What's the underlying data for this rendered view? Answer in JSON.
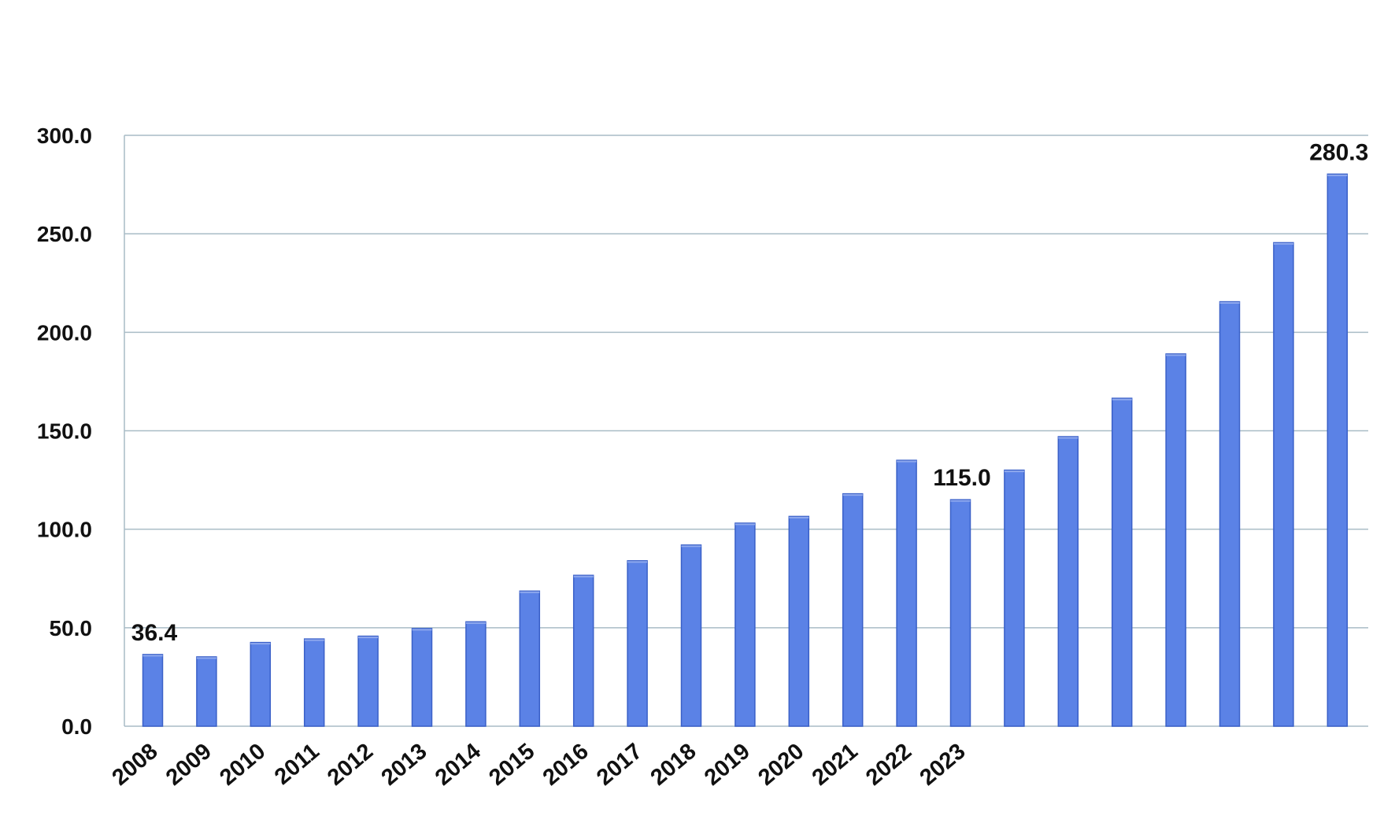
{
  "chart_data": {
    "type": "bar",
    "title": "",
    "xlabel": "",
    "ylabel": "",
    "categories": [
      "2008",
      "2009",
      "2010",
      "2011",
      "2012",
      "2013",
      "2014",
      "2015",
      "2016",
      "2017",
      "2018",
      "2019",
      "2020",
      "2021",
      "2022",
      "2023",
      "",
      "",
      "",
      "",
      "",
      "",
      ""
    ],
    "values": [
      36.4,
      35.2,
      42.5,
      44.3,
      45.7,
      49.6,
      53.0,
      68.6,
      76.6,
      84.0,
      92.0,
      103.1,
      106.5,
      118.0,
      135.0,
      115.0,
      130.0,
      147.0,
      166.5,
      189.0,
      215.5,
      245.5,
      280.3
    ],
    "ylim": [
      0,
      300
    ],
    "yticks": [
      "0.0",
      "50.0",
      "100.0",
      "150.0",
      "200.0",
      "250.0",
      "300.0"
    ],
    "data_labels": [
      {
        "index": 0,
        "text": "36.4"
      },
      {
        "index": 15,
        "text": "115.0"
      },
      {
        "index": 22,
        "text": "280.3"
      }
    ],
    "grid": true,
    "legend": "none",
    "bar_color": "#5b82e6",
    "bar_edge_color": "#3a60c8",
    "grid_color": "#a9bcc6"
  }
}
